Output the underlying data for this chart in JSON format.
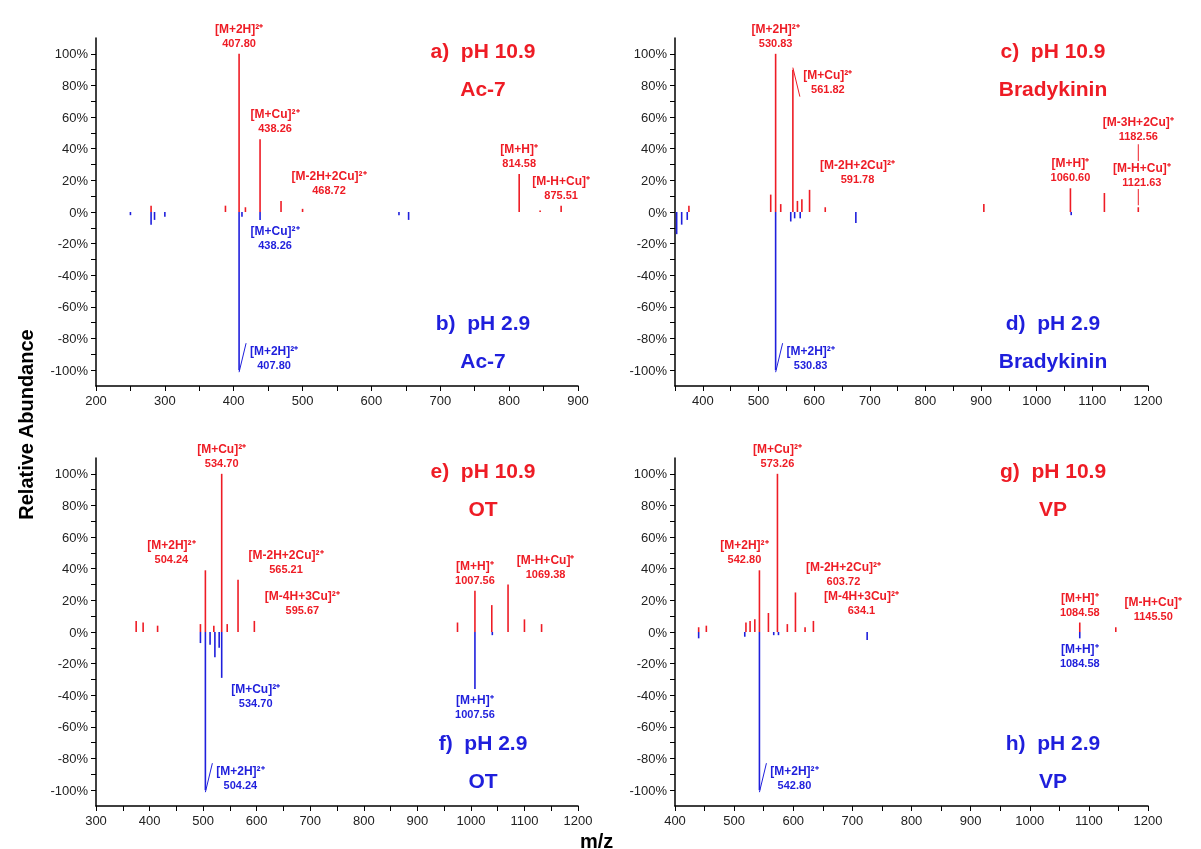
{
  "chart_data": [
    {
      "type": "bar",
      "ylabel": "Relative Abundance",
      "xlim": [
        200,
        900
      ],
      "ylim": [
        -110,
        110
      ],
      "xticks": [
        200,
        {
          "value": 250,
          "label": null
        },
        300,
        {
          "value": 350,
          "label": null
        },
        400,
        {
          "value": 450,
          "label": null
        },
        500,
        {
          "value": 550,
          "label": null
        },
        600,
        {
          "value": 650,
          "label": null
        },
        700,
        {
          "value": 750,
          "label": null
        },
        800,
        {
          "value": 850,
          "label": null
        },
        900
      ],
      "yticks": [
        {
          "value": -100,
          "label": "-100%"
        },
        {
          "value": -90,
          "label": null
        },
        {
          "value": -80,
          "label": "-80%"
        },
        {
          "value": -70,
          "label": null
        },
        {
          "value": -60,
          "label": "-60%"
        },
        {
          "value": -50,
          "label": null
        },
        {
          "value": -40,
          "label": "-40%"
        },
        {
          "value": -30,
          "label": null
        },
        {
          "value": -20,
          "label": "-20%"
        },
        {
          "value": -10,
          "label": null
        },
        {
          "value": 0,
          "label": "0%"
        },
        {
          "value": 10,
          "label": null
        },
        {
          "value": 20,
          "label": "20%"
        },
        {
          "value": 30,
          "label": null
        },
        {
          "value": 40,
          "label": "40%"
        },
        {
          "value": 50,
          "label": null
        },
        {
          "value": 60,
          "label": "60%"
        },
        {
          "value": 70,
          "label": null
        },
        {
          "value": 80,
          "label": "80%"
        },
        {
          "value": 90,
          "label": null
        },
        {
          "value": 100,
          "label": "100%"
        }
      ],
      "series": [
        {
          "color": "#ee1c25",
          "x": [
            280,
            388,
            407.8,
            417,
            438.26,
            468.72,
            500,
            814.58,
            845,
            875.51
          ],
          "values": [
            4,
            4,
            100,
            3,
            46,
            7,
            2,
            24,
            1,
            4
          ]
        },
        {
          "color": "#1f1fdc",
          "x": [
            250,
            280,
            285,
            300,
            407.8,
            412,
            438.26,
            640,
            654
          ],
          "values": [
            -2,
            -8,
            -5,
            -3,
            -100,
            -3,
            -5,
            -2,
            -5
          ]
        }
      ],
      "annotations": [
        "a)  pH 10.9",
        "Ac-7",
        "b)  pH 2.9",
        "Ac-7",
        {
          "text": "[M+2H]²⁺\n407.80",
          "x": 407.8,
          "y": 100
        },
        {
          "text": "[M+Cu]²⁺\n438.26",
          "x": 438.26,
          "y": 46
        },
        {
          "text": "[M-2H+2Cu]²⁺\n468.72",
          "x": 468.72,
          "y": 7
        },
        {
          "text": "[M+H]⁺\n814.58",
          "x": 814.58,
          "y": 24
        },
        {
          "text": "[M-H+Cu]⁺\n875.51",
          "x": 875.51,
          "y": 4
        },
        {
          "text": "[M+Cu]²⁺\n438.26",
          "x": 438.26,
          "y": -5
        },
        {
          "text": "[M+2H]²⁺\n407.80",
          "x": 407.8,
          "y": -100
        }
      ]
    },
    {
      "type": "bar",
      "xlim": [
        350,
        1200
      ],
      "ylim": [
        -110,
        110
      ],
      "xticks": [
        {
          "value": 350,
          "label": null
        },
        400,
        {
          "value": 450,
          "label": null
        },
        500,
        {
          "value": 550,
          "label": null
        },
        600,
        {
          "value": 650,
          "label": null
        },
        700,
        {
          "value": 750,
          "label": null
        },
        800,
        {
          "value": 850,
          "label": null
        },
        900,
        {
          "value": 950,
          "label": null
        },
        1000,
        {
          "value": 1050,
          "label": null
        },
        1100,
        {
          "value": 1150,
          "label": null
        },
        1200
      ],
      "yticks": [
        {
          "value": -100,
          "label": "-100%"
        },
        {
          "value": -90,
          "label": null
        },
        {
          "value": -80,
          "label": "-80%"
        },
        {
          "value": -70,
          "label": null
        },
        {
          "value": -60,
          "label": "-60%"
        },
        {
          "value": -50,
          "label": null
        },
        {
          "value": -40,
          "label": "-40%"
        },
        {
          "value": -30,
          "label": null
        },
        {
          "value": -20,
          "label": "-20%"
        },
        {
          "value": -10,
          "label": null
        },
        {
          "value": 0,
          "label": "0%"
        },
        {
          "value": 10,
          "label": null
        },
        {
          "value": 20,
          "label": "20%"
        },
        {
          "value": 30,
          "label": null
        },
        {
          "value": 40,
          "label": "40%"
        },
        {
          "value": 50,
          "label": null
        },
        {
          "value": 60,
          "label": "60%"
        },
        {
          "value": 70,
          "label": null
        },
        {
          "value": 80,
          "label": "80%"
        },
        {
          "value": 90,
          "label": null
        },
        {
          "value": 100,
          "label": "100%"
        }
      ],
      "series": [
        {
          "color": "#ee1c25",
          "x": [
            375,
            522,
            530.83,
            540,
            561.82,
            570,
            578,
            591.78,
            620,
            905,
            1060.6,
            1121.63,
            1182.56
          ],
          "values": [
            4,
            11,
            100,
            5,
            90,
            7,
            8,
            14,
            3,
            5,
            15,
            12,
            3
          ]
        },
        {
          "color": "#1f1fdc",
          "x": [
            353,
            362,
            372,
            530.83,
            558,
            565,
            575,
            675,
            1062
          ],
          "values": [
            -14,
            -8,
            -5,
            -100,
            -6,
            -4,
            -4,
            -7,
            -2
          ]
        }
      ],
      "annotations": [
        "c)  pH 10.9",
        "Bradykinin",
        "d)  pH 2.9",
        "Bradykinin",
        {
          "text": "[M+2H]²⁺\n530.83",
          "x": 530.83,
          "y": 100
        },
        {
          "text": "[M+Cu]²⁺\n561.82",
          "x": 561.82,
          "y": 90
        },
        {
          "text": "[M-2H+2Cu]²⁺\n591.78",
          "x": 591.78,
          "y": 14
        },
        {
          "text": "[M+H]⁺\n1060.60",
          "x": 1060.6,
          "y": 15
        },
        {
          "text": "[M-H+Cu]⁺\n1121.63",
          "x": 1121.63,
          "y": 12
        },
        {
          "text": "[M-3H+2Cu]⁺\n1182.56",
          "x": 1182.56,
          "y": 3
        },
        {
          "text": "[M+2H]²⁺\n530.83",
          "x": 530.83,
          "y": -100
        }
      ]
    },
    {
      "type": "bar",
      "xlabel": "m/z",
      "xlim": [
        300,
        1200
      ],
      "ylim": [
        -110,
        110
      ],
      "xticks": [
        300,
        {
          "value": 350,
          "label": null
        },
        400,
        {
          "value": 450,
          "label": null
        },
        500,
        {
          "value": 550,
          "label": null
        },
        600,
        {
          "value": 650,
          "label": null
        },
        700,
        {
          "value": 750,
          "label": null
        },
        800,
        {
          "value": 850,
          "label": null
        },
        900,
        {
          "value": 950,
          "label": null
        },
        1000,
        {
          "value": 1050,
          "label": null
        },
        1100,
        {
          "value": 1150,
          "label": null
        },
        1200
      ],
      "yticks": [
        {
          "value": -100,
          "label": "-100%"
        },
        {
          "value": -90,
          "label": null
        },
        {
          "value": -80,
          "label": "-80%"
        },
        {
          "value": -70,
          "label": null
        },
        {
          "value": -60,
          "label": "-60%"
        },
        {
          "value": -50,
          "label": null
        },
        {
          "value": -40,
          "label": "-40%"
        },
        {
          "value": -30,
          "label": null
        },
        {
          "value": -20,
          "label": "-20%"
        },
        {
          "value": -10,
          "label": null
        },
        {
          "value": 0,
          "label": "0%"
        },
        {
          "value": 10,
          "label": null
        },
        {
          "value": 20,
          "label": "20%"
        },
        {
          "value": 30,
          "label": null
        },
        {
          "value": 40,
          "label": "40%"
        },
        {
          "value": 50,
          "label": null
        },
        {
          "value": 60,
          "label": "60%"
        },
        {
          "value": 70,
          "label": null
        },
        {
          "value": 80,
          "label": "80%"
        },
        {
          "value": 90,
          "label": null
        },
        {
          "value": 100,
          "label": "100%"
        }
      ],
      "series": [
        {
          "color": "#ee1c25",
          "x": [
            375,
            388,
            415,
            495,
            504.24,
            520,
            534.7,
            545,
            565.21,
            595.67,
            975,
            1007.56,
            1039,
            1069.38,
            1100,
            1132
          ],
          "values": [
            7,
            6,
            4,
            5,
            39,
            4,
            100,
            5,
            33,
            7,
            6,
            26,
            17,
            30,
            8,
            5
          ]
        },
        {
          "color": "#1f1fdc",
          "x": [
            495,
            504.24,
            513,
            522,
            530,
            534.7,
            1007.56,
            1040
          ],
          "values": [
            -7,
            -100,
            -8,
            -16,
            -10,
            -29,
            -36,
            -2
          ]
        }
      ],
      "annotations": [
        "e)  pH 10.9",
        "OT",
        "f)  pH 2.9",
        "OT",
        {
          "text": "[M+Cu]²⁺\n534.70",
          "x": 534.7,
          "y": 100
        },
        {
          "text": "[M+2H]²⁺\n504.24",
          "x": 504.24,
          "y": 39
        },
        {
          "text": "[M-2H+2Cu]²⁺\n565.21",
          "x": 565.21,
          "y": 33
        },
        {
          "text": "[M-4H+3Cu]²⁺\n595.67",
          "x": 595.67,
          "y": 7
        },
        {
          "text": "[M+H]⁺\n1007.56",
          "x": 1007.56,
          "y": 26
        },
        {
          "text": "[M-H+Cu]⁺\n1069.38",
          "x": 1069.38,
          "y": 30
        },
        {
          "text": "[M+Cu]²⁺\n534.70",
          "x": 534.7,
          "y": -29
        },
        {
          "text": "[M+H]⁺\n1007.56",
          "x": 1007.56,
          "y": -36
        },
        {
          "text": "[M+2H]²⁺\n504.24",
          "x": 504.24,
          "y": -100
        }
      ]
    },
    {
      "type": "bar",
      "xlim": [
        400,
        1200
      ],
      "ylim": [
        -110,
        110
      ],
      "xticks": [
        400,
        {
          "value": 450,
          "label": null
        },
        500,
        {
          "value": 550,
          "label": null
        },
        600,
        {
          "value": 650,
          "label": null
        },
        700,
        {
          "value": 750,
          "label": null
        },
        800,
        {
          "value": 850,
          "label": null
        },
        900,
        {
          "value": 950,
          "label": null
        },
        1000,
        {
          "value": 1050,
          "label": null
        },
        1100,
        {
          "value": 1150,
          "label": null
        },
        1200
      ],
      "yticks": [
        {
          "value": -100,
          "label": "-100%"
        },
        {
          "value": -90,
          "label": null
        },
        {
          "value": -80,
          "label": "-80%"
        },
        {
          "value": -70,
          "label": null
        },
        {
          "value": -60,
          "label": "-60%"
        },
        {
          "value": -50,
          "label": null
        },
        {
          "value": -40,
          "label": "-40%"
        },
        {
          "value": -30,
          "label": null
        },
        {
          "value": -20,
          "label": "-20%"
        },
        {
          "value": -10,
          "label": null
        },
        {
          "value": 0,
          "label": "0%"
        },
        {
          "value": 10,
          "label": null
        },
        {
          "value": 20,
          "label": "20%"
        },
        {
          "value": 30,
          "label": null
        },
        {
          "value": 40,
          "label": "40%"
        },
        {
          "value": 50,
          "label": null
        },
        {
          "value": 60,
          "label": "60%"
        },
        {
          "value": 70,
          "label": null
        },
        {
          "value": 80,
          "label": "80%"
        },
        {
          "value": 90,
          "label": null
        },
        {
          "value": 100,
          "label": "100%"
        }
      ],
      "series": [
        {
          "color": "#ee1c25",
          "x": [
            440,
            453,
            520,
            527,
            535,
            542.8,
            558,
            573.26,
            590,
            603.72,
            620,
            634.1,
            1084.58,
            1145.5
          ],
          "values": [
            3,
            4,
            6,
            7,
            8,
            39,
            12,
            100,
            5,
            25,
            3,
            7,
            6,
            3
          ]
        },
        {
          "color": "#1f1fdc",
          "x": [
            440,
            518,
            542.8,
            567,
            575,
            725,
            1084.58
          ],
          "values": [
            -4,
            -3,
            -100,
            -2,
            -2,
            -5,
            -4
          ]
        }
      ],
      "annotations": [
        "g)  pH 10.9",
        "VP",
        "h)  pH 2.9",
        "VP",
        {
          "text": "[M+Cu]²⁺\n573.26",
          "x": 573.26,
          "y": 100
        },
        {
          "text": "[M+2H]²⁺\n542.80",
          "x": 542.8,
          "y": 39
        },
        {
          "text": "[M-2H+2Cu]²⁺\n603.72",
          "x": 603.72,
          "y": 25
        },
        {
          "text": "[M-4H+3Cu]²⁺\n634.1",
          "x": 634.1,
          "y": 7
        },
        {
          "text": "[M+H]⁺\n1084.58",
          "x": 1084.58,
          "y": 6
        },
        {
          "text": "[M-H+Cu]⁺\n1145.50",
          "x": 1145.5,
          "y": 3
        },
        {
          "text": "[M+H]⁺\n1084.58",
          "x": 1084.58,
          "y": -4
        },
        {
          "text": "[M+2H]²⁺\n542.80",
          "x": 542.8,
          "y": -100
        }
      ]
    }
  ]
}
